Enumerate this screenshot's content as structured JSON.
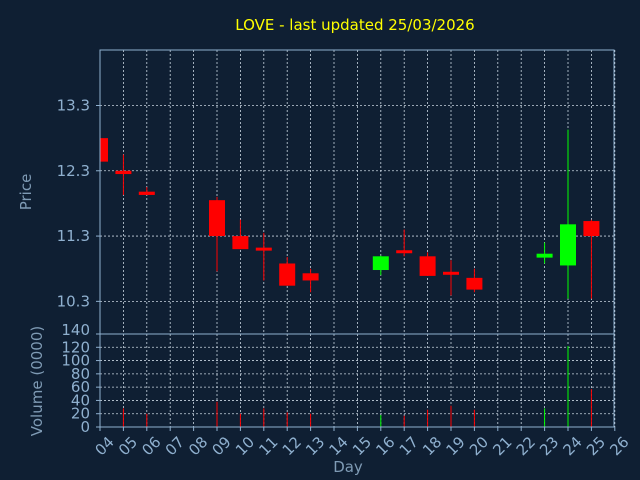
{
  "chart_data": {
    "type": "candlestick",
    "title": "LOVE - last updated 25/03/2026",
    "xlabel": "Day",
    "ylabel": "Price",
    "volume_ylabel": "Volume (0000)",
    "x_ticks": [
      "04",
      "05",
      "06",
      "07",
      "08",
      "09",
      "10",
      "11",
      "12",
      "13",
      "14",
      "15",
      "16",
      "17",
      "18",
      "19",
      "20",
      "21",
      "22",
      "23",
      "24",
      "25",
      "26"
    ],
    "price_ticks": [
      "13.3",
      "12.3",
      "11.3",
      "10.3"
    ],
    "price_tick_values": [
      13.3,
      12.3,
      11.3,
      10.3
    ],
    "price_ylim": [
      9.8,
      14.15
    ],
    "volume_ticks": [
      "140",
      "120",
      "100",
      "80",
      "60",
      "40",
      "20",
      "0"
    ],
    "volume_tick_values": [
      140,
      120,
      100,
      80,
      60,
      40,
      20,
      0
    ],
    "volume_ylim": [
      0,
      140
    ],
    "grid": true,
    "colors": {
      "up": "#00ff00",
      "down": "#ff0000",
      "background": "#0f1f33",
      "title": "#ffff00",
      "axis": "#8fb0cf"
    },
    "candles": [
      {
        "day": "04",
        "open": 12.8,
        "high": 12.8,
        "low": 12.44,
        "close": 12.44,
        "volume": 0
      },
      {
        "day": "05",
        "open": 12.3,
        "high": 12.55,
        "low": 11.93,
        "close": 12.25,
        "volume": 28
      },
      {
        "day": "06",
        "open": 11.98,
        "high": 12.05,
        "low": 11.93,
        "close": 11.93,
        "volume": 20
      },
      {
        "day": "09",
        "open": 11.85,
        "high": 11.9,
        "low": 10.76,
        "close": 11.3,
        "volume": 38
      },
      {
        "day": "10",
        "open": 11.3,
        "high": 11.55,
        "low": 11.1,
        "close": 11.1,
        "volume": 20
      },
      {
        "day": "11",
        "open": 11.1,
        "high": 11.35,
        "low": 10.62,
        "close": 11.06,
        "volume": 28
      },
      {
        "day": "12",
        "open": 10.88,
        "high": 10.98,
        "low": 10.54,
        "close": 10.54,
        "volume": 22
      },
      {
        "day": "13",
        "open": 10.73,
        "high": 10.8,
        "low": 10.44,
        "close": 10.62,
        "volume": 20
      },
      {
        "day": "16",
        "open": 10.78,
        "high": 11.0,
        "low": 10.7,
        "close": 10.99,
        "volume": 18
      },
      {
        "day": "17",
        "open": 11.06,
        "high": 11.4,
        "low": 10.99,
        "close": 11.03,
        "volume": 17
      },
      {
        "day": "18",
        "open": 10.99,
        "high": 11.05,
        "low": 10.69,
        "close": 10.69,
        "volume": 26
      },
      {
        "day": "19",
        "open": 10.73,
        "high": 10.93,
        "low": 10.39,
        "close": 10.7,
        "volume": 32
      },
      {
        "day": "20",
        "open": 10.66,
        "high": 10.8,
        "low": 10.44,
        "close": 10.48,
        "volume": 26
      },
      {
        "day": "23",
        "open": 10.97,
        "high": 11.2,
        "low": 10.88,
        "close": 11.03,
        "volume": 28
      },
      {
        "day": "24",
        "open": 10.85,
        "high": 12.93,
        "low": 10.34,
        "close": 11.48,
        "volume": 122
      },
      {
        "day": "25",
        "open": 11.53,
        "high": 11.55,
        "low": 10.34,
        "close": 11.3,
        "volume": 57
      }
    ]
  }
}
